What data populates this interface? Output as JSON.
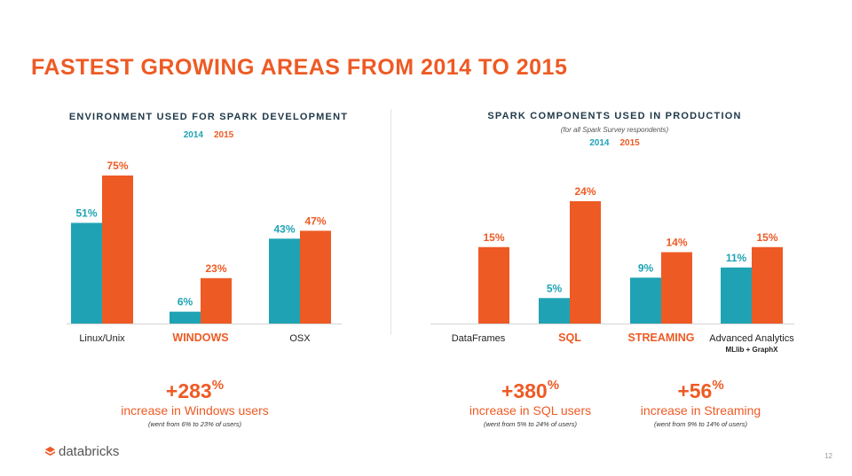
{
  "slide": {
    "title": "FASTEST GROWING AREAS FROM 2014 TO 2015",
    "page_number": "12",
    "logo_text": "databricks"
  },
  "colors": {
    "c2014": "#1fa3b4",
    "c2015": "#ee5a24",
    "title": "#ee5a24",
    "subtitle": "#213a4a"
  },
  "legend": {
    "y2014": "2014",
    "y2015": "2015"
  },
  "chart_data": [
    {
      "type": "bar",
      "title": "ENVIRONMENT USED FOR SPARK DEVELOPMENT",
      "categories": [
        "Linux/Unix",
        "WINDOWS",
        "OSX"
      ],
      "category_highlight": [
        false,
        true,
        false
      ],
      "series": [
        {
          "name": "2014",
          "values": [
            51,
            6,
            43
          ]
        },
        {
          "name": "2015",
          "values": [
            75,
            23,
            47
          ]
        }
      ],
      "unit": "%",
      "ylim": [
        0,
        75
      ],
      "grid": false,
      "legend": "top-center"
    },
    {
      "type": "bar",
      "title": "SPARK COMPONENTS USED IN PRODUCTION",
      "note": "(for all Spark Survey respondents)",
      "categories": [
        "DataFrames",
        "SQL",
        "STREAMING",
        "Advanced Analytics"
      ],
      "category_sublabels": [
        "",
        "",
        "",
        "MLlib + GraphX"
      ],
      "category_highlight": [
        false,
        true,
        true,
        false
      ],
      "series": [
        {
          "name": "2014",
          "values": [
            null,
            5,
            9,
            11
          ]
        },
        {
          "name": "2015",
          "values": [
            15,
            24,
            14,
            15
          ]
        }
      ],
      "unit": "%",
      "ylim": [
        0,
        24
      ],
      "grid": false,
      "legend": "top-center"
    }
  ],
  "stats": [
    {
      "value": "+283",
      "suffix": "%",
      "label": "increase in Windows users",
      "detail": "(went from 6% to 23% of users)"
    },
    {
      "value": "+380",
      "suffix": "%",
      "label": "increase in SQL users",
      "detail": "(went from 5% to 24% of users)"
    },
    {
      "value": "+56",
      "suffix": "%",
      "label": "increase in Streaming",
      "detail": "(went from 9% to 14% of users)"
    }
  ]
}
